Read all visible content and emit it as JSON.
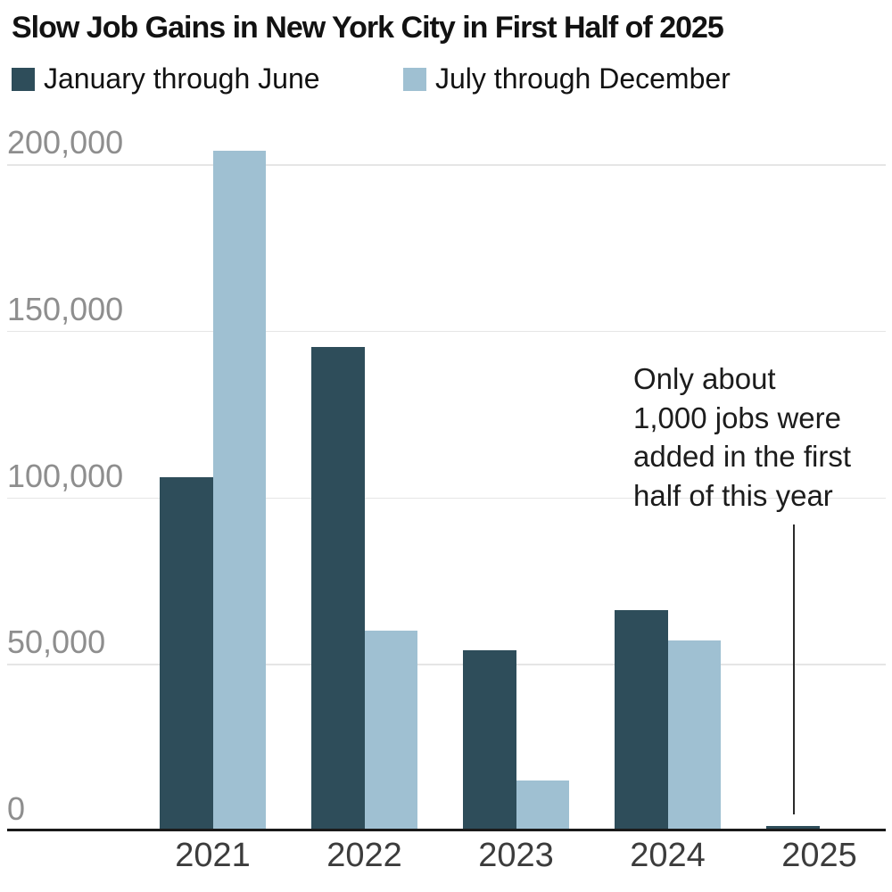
{
  "title": "Slow Job Gains in New York City in First Half of 2025",
  "legend": {
    "items": [
      {
        "label": "January through June",
        "color": "#2e4d5a"
      },
      {
        "label": "July through December",
        "color": "#9fc0d2"
      }
    ]
  },
  "annotation": {
    "text": "Only about 1,000 jobs were added in the first half of this year",
    "lines": [
      "Only about",
      "1,000 jobs were",
      "added in the first",
      "half of this year"
    ]
  },
  "chart_data": {
    "type": "bar",
    "title": "Slow Job Gains in New York City in First Half of 2025",
    "categories": [
      "2021",
      "2022",
      "2023",
      "2024",
      "2025"
    ],
    "series": [
      {
        "name": "January through June",
        "color": "#2e4d5a",
        "values": [
          106000,
          145000,
          54000,
          66000,
          1000
        ]
      },
      {
        "name": "July through December",
        "color": "#9fc0d2",
        "values": [
          204000,
          60000,
          15000,
          57000,
          null
        ]
      }
    ],
    "yticks": [
      {
        "value": 0,
        "label": "0"
      },
      {
        "value": 50000,
        "label": "50,000"
      },
      {
        "value": 100000,
        "label": "100,000"
      },
      {
        "value": 150000,
        "label": "150,000"
      },
      {
        "value": 200000,
        "label": "200,000"
      }
    ],
    "ylim": [
      0,
      205000
    ],
    "grid": true,
    "legend_position": "top-left",
    "annotation": "Only about 1,000 jobs were added in the first half of this year"
  },
  "colors": {
    "axis": "#1a1a1a",
    "gridline": "#e5e5e5",
    "ytick_text": "#8e8e8e",
    "xtick_text": "#3c3c3c",
    "annotation_leader": "#2b2b2b",
    "background": "#ffffff"
  }
}
